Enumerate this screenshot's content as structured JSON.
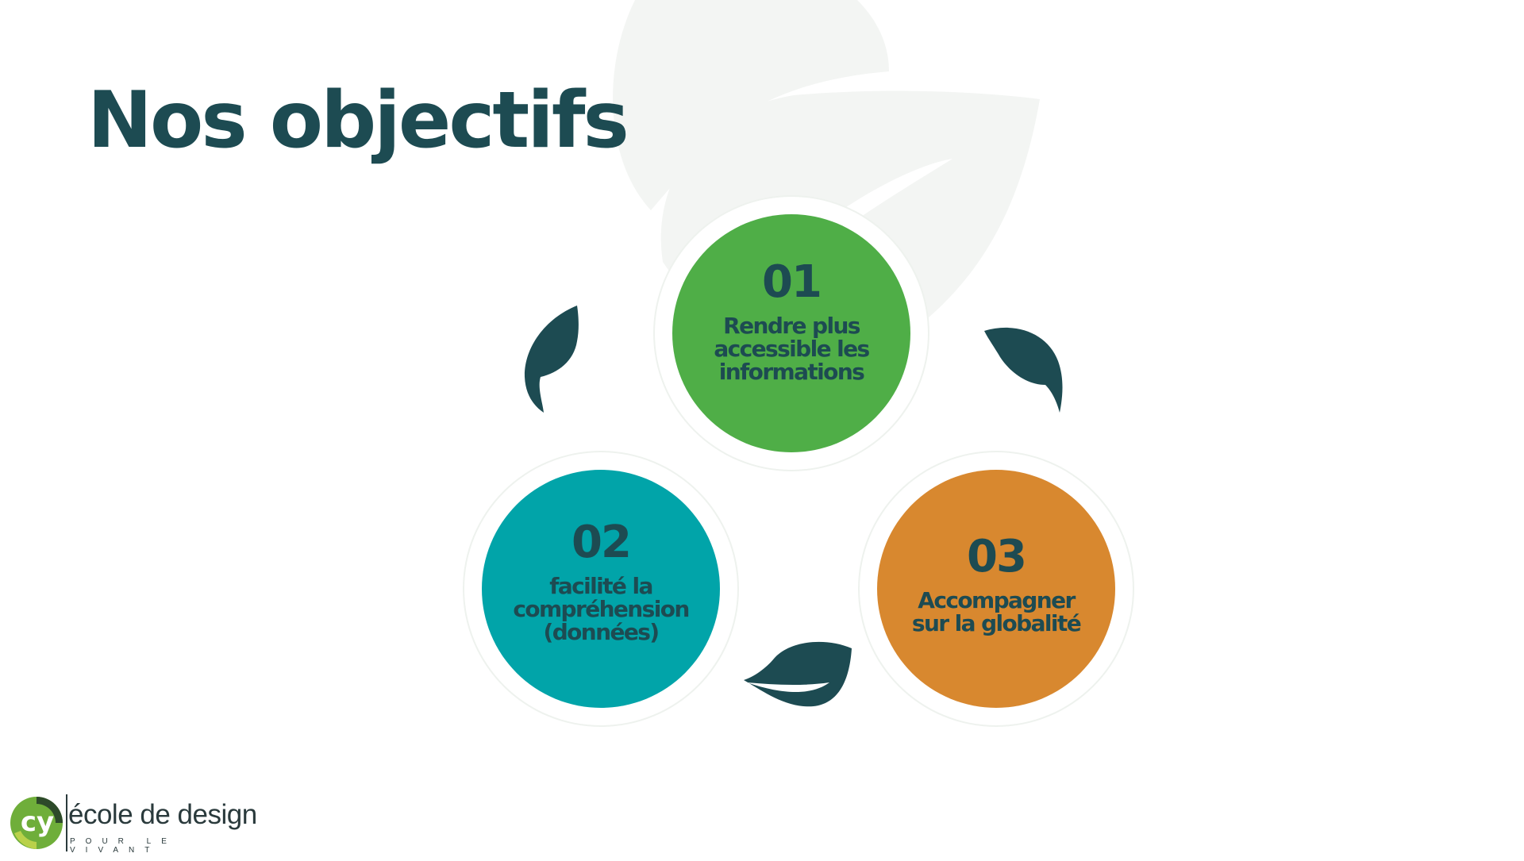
{
  "slide": {
    "title": "Nos objectifs"
  },
  "objectives": [
    {
      "number": "01",
      "text": "Rendre plus accessible les informations",
      "color": "#4fae47"
    },
    {
      "number": "02",
      "text": "facilité la compréhension (données)",
      "color": "#01a4a9"
    },
    {
      "number": "03",
      "text": "Accompagner sur la globalité",
      "color": "#d8882f"
    }
  ],
  "logo": {
    "mark_text": "cy",
    "name": "école de design",
    "tagline": "POUR LE VIVANT"
  },
  "colors": {
    "title": "#1d4b52",
    "leaf": "#1d4b52",
    "background_leaf": "#f3f5f3"
  },
  "icons": [
    "leaf-icon"
  ]
}
